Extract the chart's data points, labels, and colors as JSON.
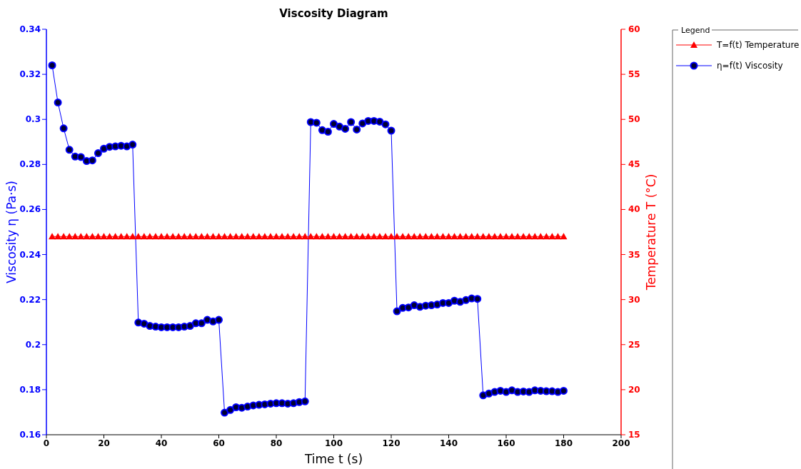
{
  "chart_data": {
    "type": "line",
    "title": "Viscosity Diagram",
    "xlabel": "Time t (s)",
    "ylabel": "Viscosity η (Pa·s)",
    "y2label": "Temperature T (°C)",
    "legend_title": "Legend",
    "legend": "right",
    "grid": false,
    "line_style": "solid",
    "x": [
      2,
      4,
      6,
      8,
      10,
      12,
      14,
      16,
      18,
      20,
      22,
      24,
      26,
      28,
      30,
      32,
      34,
      36,
      38,
      40,
      42,
      44,
      46,
      48,
      50,
      52,
      54,
      56,
      58,
      60,
      62,
      64,
      66,
      68,
      70,
      72,
      74,
      76,
      78,
      80,
      82,
      84,
      86,
      88,
      90,
      92,
      94,
      96,
      98,
      100,
      102,
      104,
      106,
      108,
      110,
      112,
      114,
      116,
      118,
      120,
      122,
      124,
      126,
      128,
      130,
      132,
      134,
      136,
      138,
      140,
      142,
      144,
      146,
      148,
      150,
      152,
      154,
      156,
      158,
      160,
      162,
      164,
      166,
      168,
      170,
      172,
      174,
      176,
      178,
      180
    ],
    "xlim": [
      0,
      200
    ],
    "xticks": [
      0,
      20,
      40,
      60,
      80,
      100,
      120,
      140,
      160,
      180,
      200
    ],
    "ylim": [
      0.16,
      0.34
    ],
    "yticks": [
      0.16,
      0.18,
      {
        "value": 0.2,
        "label": "0.2"
      },
      0.22,
      0.24,
      0.26,
      0.28,
      {
        "value": 0.3,
        "label": "0.3"
      },
      0.32,
      0.34
    ],
    "y2lim": [
      15,
      60
    ],
    "y2ticks": [
      15,
      20,
      25,
      30,
      35,
      40,
      45,
      50,
      55,
      60
    ],
    "series": [
      {
        "name": "T=f(t) Temperature",
        "color": "#ff0000",
        "axis": "y2",
        "marker": "triangle",
        "values": [
          37,
          37,
          37,
          37,
          37,
          37,
          37,
          37,
          37,
          37,
          37,
          37,
          37,
          37,
          37,
          37,
          37,
          37,
          37,
          37,
          37,
          37,
          37,
          37,
          37,
          37,
          37,
          37,
          37,
          37,
          37,
          37,
          37,
          37,
          37,
          37,
          37,
          37,
          37,
          37,
          37,
          37,
          37,
          37,
          37,
          37,
          37,
          37,
          37,
          37,
          37,
          37,
          37,
          37,
          37,
          37,
          37,
          37,
          37,
          37,
          37,
          37,
          37,
          37,
          37,
          37,
          37,
          37,
          37,
          37,
          37,
          37,
          37,
          37,
          37,
          37,
          37,
          37,
          37,
          37,
          37,
          37,
          37,
          37,
          37,
          37,
          37,
          37,
          37,
          37
        ]
      },
      {
        "name": "η=f(t) Viscosity",
        "color": "#0000ff",
        "axis": "y",
        "marker": "circle",
        "values": [
          0.324,
          0.3075,
          0.296,
          0.2865,
          0.2835,
          0.2833,
          0.2815,
          0.2818,
          0.285,
          0.287,
          0.2878,
          0.288,
          0.2883,
          0.288,
          0.2888,
          0.2098,
          0.2093,
          0.2083,
          0.208,
          0.2077,
          0.2077,
          0.2077,
          0.2077,
          0.208,
          0.2083,
          0.2095,
          0.2095,
          0.211,
          0.2103,
          0.211,
          0.1698,
          0.171,
          0.1722,
          0.172,
          0.1725,
          0.173,
          0.1733,
          0.1735,
          0.1738,
          0.174,
          0.174,
          0.1738,
          0.174,
          0.1745,
          0.1748,
          0.2988,
          0.2985,
          0.2952,
          0.2945,
          0.298,
          0.2968,
          0.2958,
          0.2988,
          0.2955,
          0.2982,
          0.2993,
          0.2993,
          0.299,
          0.2978,
          0.295,
          0.2148,
          0.2163,
          0.2165,
          0.2175,
          0.2168,
          0.2173,
          0.2175,
          0.2178,
          0.2185,
          0.2185,
          0.2195,
          0.219,
          0.2198,
          0.2205,
          0.2203,
          0.1775,
          0.1783,
          0.179,
          0.1795,
          0.179,
          0.1797,
          0.179,
          0.1792,
          0.179,
          0.1797,
          0.1795,
          0.1793,
          0.1793,
          0.179,
          0.1795
        ]
      }
    ]
  }
}
